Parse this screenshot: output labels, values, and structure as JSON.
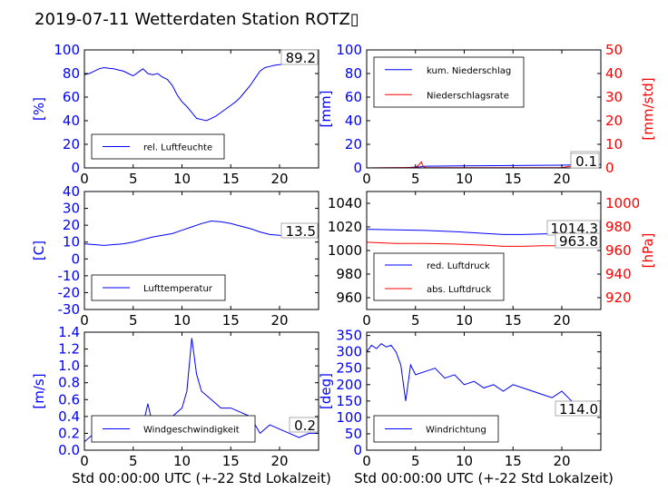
{
  "title": "2019-07-11 Wetterdaten Station ROTZ▯",
  "xlabel_common": "Std 00:00:00 UTC (+-22 Std Lokalzeit)",
  "chart_data": [
    {
      "type": "line",
      "id": "humidity",
      "ylabel": "[%]",
      "ylim": [
        0,
        100
      ],
      "yticks": [
        0,
        20,
        40,
        60,
        80,
        100
      ],
      "xlim": [
        0,
        24
      ],
      "xticks": [
        0,
        5,
        10,
        15,
        20
      ],
      "last_value": "89.2",
      "legend_pos": "lower-left",
      "series": [
        {
          "name": "rel. Luftfeuchte",
          "color": "#0000ff",
          "x": [
            0,
            0.5,
            1,
            1.5,
            2,
            2.5,
            3,
            3.5,
            4,
            4.5,
            5,
            5.5,
            6,
            6.5,
            7,
            7.5,
            8,
            8.5,
            9,
            9.5,
            10,
            10.5,
            11,
            11.5,
            12,
            12.5,
            13,
            13.5,
            14,
            14.5,
            15,
            15.5,
            16,
            16.5,
            17,
            17.5,
            18,
            18.5,
            19,
            19.5,
            20,
            20.5,
            21,
            21.5,
            22,
            22.5,
            23,
            23.5,
            24
          ],
          "y": [
            79,
            80,
            82,
            84,
            85,
            84.5,
            84,
            83,
            82,
            80,
            78,
            81,
            84,
            80,
            79,
            80,
            77,
            75,
            70,
            62,
            56,
            52,
            47,
            42,
            41,
            40,
            42,
            44,
            47,
            50,
            53,
            56,
            60,
            65,
            70,
            76,
            82,
            85,
            86,
            87,
            87.5,
            88,
            88.2,
            88.5,
            88.8,
            89,
            89.1,
            89.2,
            89.2
          ]
        }
      ]
    },
    {
      "type": "line",
      "id": "precipitation",
      "ylabel": "[mm]",
      "ylabel_right": "[mm/std]",
      "ylim": [
        0,
        100
      ],
      "yticks": [
        0,
        20,
        40,
        60,
        80,
        100
      ],
      "ylim_right": [
        0,
        50
      ],
      "yticks_right": [
        0,
        10,
        20,
        30,
        40,
        50
      ],
      "xlim": [
        0,
        24
      ],
      "xticks": [
        0,
        5,
        10,
        15,
        20
      ],
      "last_value": "2.9",
      "last_value_right": "0.1",
      "legend_pos": "upper-left",
      "series": [
        {
          "name": "kum. Niederschlag",
          "color": "#0000ff",
          "axis": "left",
          "x": [
            0,
            4,
            5.5,
            6,
            10,
            15,
            20,
            22,
            24
          ],
          "y": [
            0,
            0.2,
            1,
            1.5,
            1.8,
            2.0,
            2.3,
            2.6,
            2.9
          ]
        },
        {
          "name": "Niederschlagsrate",
          "color": "#ff0000",
          "axis": "right",
          "x": [
            0,
            5,
            5.4,
            5.6,
            5.8,
            6,
            10,
            20,
            21.5,
            22,
            24
          ],
          "y": [
            0,
            0.2,
            1.5,
            2.5,
            0.6,
            0.1,
            0.1,
            0.1,
            1.2,
            0.3,
            0.1
          ]
        }
      ]
    },
    {
      "type": "line",
      "id": "temperature",
      "ylabel": "[C]",
      "ylim": [
        -30,
        40
      ],
      "yticks": [
        -30,
        -20,
        -10,
        0,
        10,
        20,
        30,
        40
      ],
      "xlim": [
        0,
        24
      ],
      "xticks": [
        0,
        5,
        10,
        15,
        20
      ],
      "last_value": "13.5",
      "legend_pos": "lower-left",
      "series": [
        {
          "name": "Lufttemperatur",
          "color": "#0000ff",
          "x": [
            0,
            1,
            2,
            3,
            4,
            5,
            6,
            7,
            8,
            9,
            10,
            11,
            12,
            13,
            14,
            15,
            16,
            17,
            18,
            19,
            20,
            21,
            22,
            23,
            24
          ],
          "y": [
            9,
            8.5,
            8,
            8.5,
            9,
            10,
            11.5,
            13,
            14,
            15,
            17,
            19,
            21,
            22.5,
            22,
            21,
            19.5,
            18,
            16,
            14.5,
            14,
            13.8,
            13.6,
            13.5,
            13.5
          ]
        }
      ]
    },
    {
      "type": "line",
      "id": "pressure",
      "ylabel_right": "[hPa]",
      "ylim": [
        950,
        1050
      ],
      "yticks": [
        960,
        980,
        1000,
        1020,
        1040
      ],
      "ylim_right": [
        910,
        1010
      ],
      "yticks_right": [
        920,
        940,
        960,
        980,
        1000
      ],
      "xlim": [
        0,
        24
      ],
      "xticks": [
        0,
        5,
        10,
        15,
        20
      ],
      "last_value": "1014.3",
      "last_value_right": "963.8",
      "legend_pos": "lower-left",
      "series": [
        {
          "name": "red. Luftdruck",
          "color": "#0000ff",
          "axis": "left",
          "x": [
            0,
            3,
            6,
            9,
            12,
            14,
            16,
            18,
            20,
            22,
            24
          ],
          "y": [
            1018,
            1017.5,
            1017,
            1016,
            1014.5,
            1013.5,
            1013.5,
            1014,
            1014.5,
            1014.4,
            1014.3
          ]
        },
        {
          "name": "abs. Luftdruck",
          "color": "#ff0000",
          "axis": "right",
          "x": [
            0,
            3,
            6,
            9,
            12,
            14,
            16,
            18,
            20,
            22,
            24
          ],
          "y": [
            967,
            966,
            966,
            965.5,
            964.5,
            963.5,
            963.5,
            964,
            964,
            963.9,
            963.8
          ]
        }
      ]
    },
    {
      "type": "line",
      "id": "windspeed",
      "ylabel": "[m/s]",
      "ylim": [
        0,
        1.4
      ],
      "yticks": [
        0.0,
        0.2,
        0.4,
        0.6,
        0.8,
        1.0,
        1.2,
        1.4
      ],
      "xlim": [
        0,
        24
      ],
      "xticks": [
        0,
        5,
        10,
        15,
        20
      ],
      "last_value": "0.2",
      "legend_pos": "lower-left",
      "series": [
        {
          "name": "Windgeschwindigkeit",
          "color": "#0000ff",
          "x": [
            0,
            1,
            2,
            3,
            4,
            5,
            6,
            6.5,
            7,
            8,
            9,
            10,
            10.5,
            11,
            11.5,
            12,
            13,
            14,
            15,
            16,
            17,
            18,
            19,
            20,
            21,
            22,
            23,
            24
          ],
          "y": [
            0.1,
            0.2,
            0.25,
            0.15,
            0.2,
            0.1,
            0.3,
            0.55,
            0.3,
            0.35,
            0.4,
            0.5,
            0.7,
            1.33,
            0.9,
            0.7,
            0.6,
            0.5,
            0.5,
            0.45,
            0.4,
            0.2,
            0.3,
            0.25,
            0.2,
            0.15,
            0.2,
            0.2
          ]
        }
      ]
    },
    {
      "type": "line",
      "id": "winddirection",
      "ylabel": "[deg]",
      "ylim": [
        0,
        360
      ],
      "yticks": [
        0,
        50,
        100,
        150,
        200,
        250,
        300,
        350
      ],
      "xlim": [
        0,
        24
      ],
      "xticks": [
        0,
        5,
        10,
        15,
        20
      ],
      "last_value": "114.0",
      "legend_pos": "lower-left",
      "series": [
        {
          "name": "Windrichtung",
          "color": "#0000ff",
          "x": [
            0,
            0.5,
            1,
            1.5,
            2,
            2.5,
            3,
            3.5,
            4,
            4.5,
            5,
            6,
            7,
            8,
            9,
            10,
            11,
            12,
            13,
            14,
            15,
            16,
            17,
            18,
            19,
            20,
            21,
            22,
            23,
            24
          ],
          "y": [
            300,
            320,
            310,
            325,
            315,
            320,
            300,
            260,
            150,
            260,
            230,
            240,
            250,
            220,
            230,
            200,
            210,
            190,
            200,
            180,
            200,
            190,
            180,
            170,
            160,
            180,
            150,
            140,
            130,
            114
          ]
        }
      ]
    }
  ]
}
